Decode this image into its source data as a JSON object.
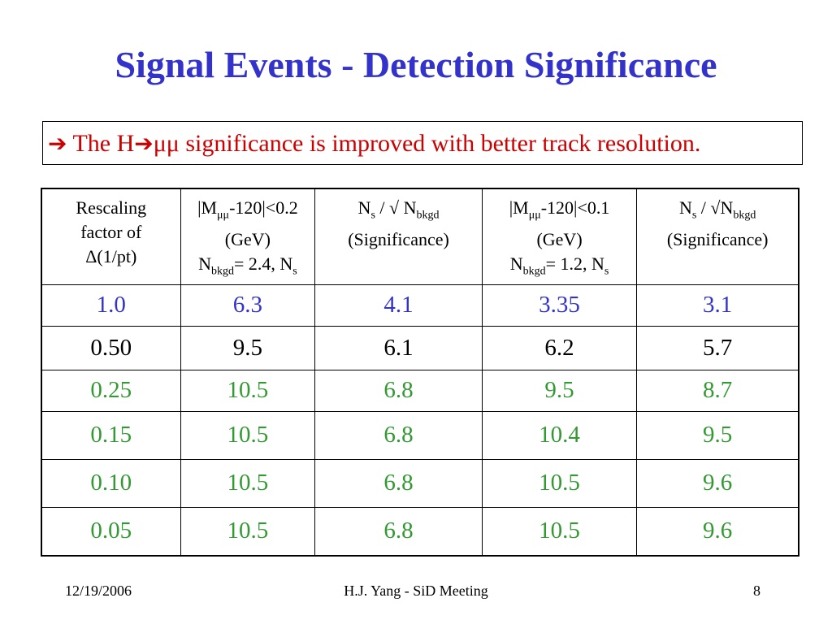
{
  "slide": {
    "title": "Signal Events - Detection Significance"
  },
  "note": {
    "arrow_icon": "➔",
    "text_prefix": "The H",
    "arrow_icon_2": "➔",
    "text_suffix": "μμ significance is improved with better track resolution.",
    "color": "#cc0000"
  },
  "table": {
    "headers": {
      "c1": {
        "line1": "Rescaling",
        "line2": "factor of",
        "line3": "Δ(1/pt)"
      },
      "c2": {
        "a": "|M",
        "sub_mm": "μμ",
        "b": "-120|<0.2",
        "line2": "(GeV)",
        "n": "N",
        "sub_bkgd": "bkgd",
        "c": "= 2.4, N",
        "sub_s": "s"
      },
      "c3": {
        "n": "N",
        "sub_s": "s",
        "mid": " / √ N",
        "sub_bkgd": "bkgd",
        "line2": "(Significance)"
      },
      "c4": {
        "a": "|M",
        "sub_mm": "μμ",
        "b": "-120|<0.1",
        "line2": "(GeV)",
        "n": "N",
        "sub_bkgd": "bkgd",
        "c": "= 1.2, N",
        "sub_s": "s"
      },
      "c5": {
        "n": "N",
        "sub_s": "s",
        "mid": " / √N",
        "sub_bkgd": "bkgd",
        "line2": "(Significance)"
      }
    },
    "rows": [
      {
        "values": [
          "1.0",
          "6.3",
          "4.1",
          "3.35",
          "3.1"
        ],
        "color": "#3333cc"
      },
      {
        "values": [
          "0.50",
          "9.5",
          "6.1",
          "6.2",
          "5.7"
        ],
        "color": "#000000"
      },
      {
        "values": [
          "0.25",
          "10.5",
          "6.8",
          "9.5",
          "8.7"
        ],
        "color": "#339933"
      },
      {
        "values": [
          "0.15",
          "10.5",
          "6.8",
          "10.4",
          "9.5"
        ],
        "color": "#339933"
      },
      {
        "values": [
          "0.10",
          "10.5",
          "6.8",
          "10.5",
          "9.6"
        ],
        "color": "#339933"
      },
      {
        "values": [
          "0.05",
          "10.5",
          "6.8",
          "10.5",
          "9.6"
        ],
        "color": "#339933"
      }
    ]
  },
  "footer": {
    "date": "12/19/2006",
    "center": "H.J. Yang - SiD Meeting",
    "page": "8"
  },
  "colors": {
    "title": "#3333cc",
    "note": "#cc0000",
    "row_blue": "#3333cc",
    "row_black": "#000000",
    "row_green": "#339933"
  }
}
